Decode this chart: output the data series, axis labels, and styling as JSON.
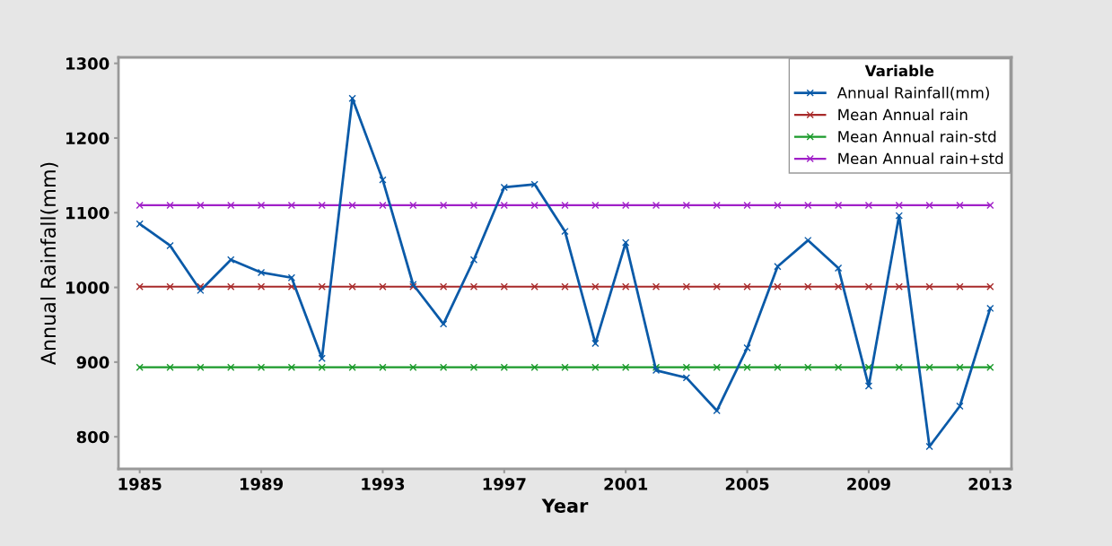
{
  "chart_data": {
    "type": "line",
    "xlabel": "Year",
    "ylabel": "Annual Rainfall(mm)",
    "legend_title": "Variable",
    "legend": "top right",
    "grid": false,
    "marker": "cross",
    "line_style": "solid",
    "x": [
      1985,
      1986,
      1987,
      1988,
      1989,
      1990,
      1991,
      1992,
      1993,
      1994,
      1995,
      1996,
      1997,
      1998,
      1999,
      2000,
      2001,
      2002,
      2003,
      2004,
      2005,
      2006,
      2007,
      2008,
      2009,
      2010,
      2011,
      2012,
      2013
    ],
    "xlim": [
      1984.3,
      2013.7
    ],
    "xticks": [
      1985,
      1989,
      1993,
      1997,
      2001,
      2005,
      2009,
      2013
    ],
    "ylim": [
      757,
      1308
    ],
    "yticks": [
      800,
      900,
      1000,
      1100,
      1200,
      1300
    ],
    "series": [
      {
        "name": "Annual Rainfall(mm)",
        "color": "#0a5aa8",
        "values": [
          1085,
          1056,
          996,
          1037,
          1020,
          1013,
          905,
          1253,
          1144,
          1004,
          951,
          1037,
          1134,
          1138,
          1075,
          925,
          1060,
          889,
          879,
          835,
          919,
          1028,
          1063,
          1026,
          868,
          1096,
          787,
          841,
          972
        ]
      },
      {
        "name": "Mean Annual rain",
        "color": "#a82a2a",
        "values": [
          1001,
          1001,
          1001,
          1001,
          1001,
          1001,
          1001,
          1001,
          1001,
          1001,
          1001,
          1001,
          1001,
          1001,
          1001,
          1001,
          1001,
          1001,
          1001,
          1001,
          1001,
          1001,
          1001,
          1001,
          1001,
          1001,
          1001,
          1001,
          1001
        ]
      },
      {
        "name": "Mean Annual rain-std",
        "color": "#1a9a2a",
        "values": [
          893,
          893,
          893,
          893,
          893,
          893,
          893,
          893,
          893,
          893,
          893,
          893,
          893,
          893,
          893,
          893,
          893,
          893,
          893,
          893,
          893,
          893,
          893,
          893,
          893,
          893,
          893,
          893,
          893
        ]
      },
      {
        "name": "Mean Annual rain+std",
        "color": "#a020c8",
        "values": [
          1110,
          1110,
          1110,
          1110,
          1110,
          1110,
          1110,
          1110,
          1110,
          1110,
          1110,
          1110,
          1110,
          1110,
          1110,
          1110,
          1110,
          1110,
          1110,
          1110,
          1110,
          1110,
          1110,
          1110,
          1110,
          1110,
          1110,
          1110,
          1110
        ]
      }
    ]
  }
}
